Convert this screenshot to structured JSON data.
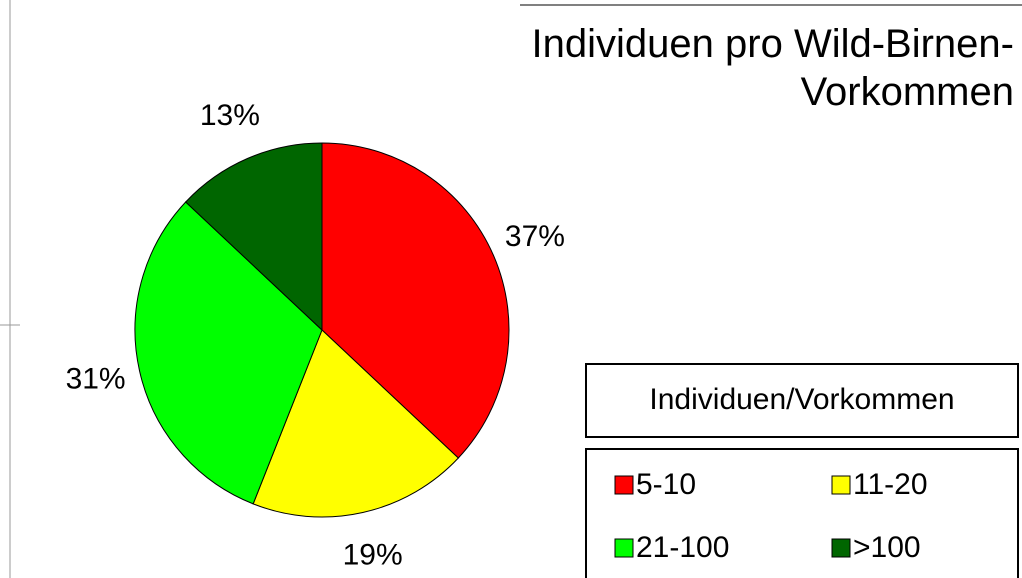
{
  "chart_data": {
    "type": "pie",
    "title": "Individuen pro Wild-Birnen-Vorkommen",
    "legend_title": "Individuen/Vorkommen",
    "categories": [
      "5-10",
      "11-20",
      "21-100",
      ">100"
    ],
    "values": [
      37,
      19,
      31,
      13
    ],
    "value_labels": [
      "37%",
      "19%",
      "31%",
      "13%"
    ],
    "colors": [
      "#ff0000",
      "#ffff00",
      "#00ff00",
      "#006600"
    ],
    "legend": "bottom-right"
  }
}
